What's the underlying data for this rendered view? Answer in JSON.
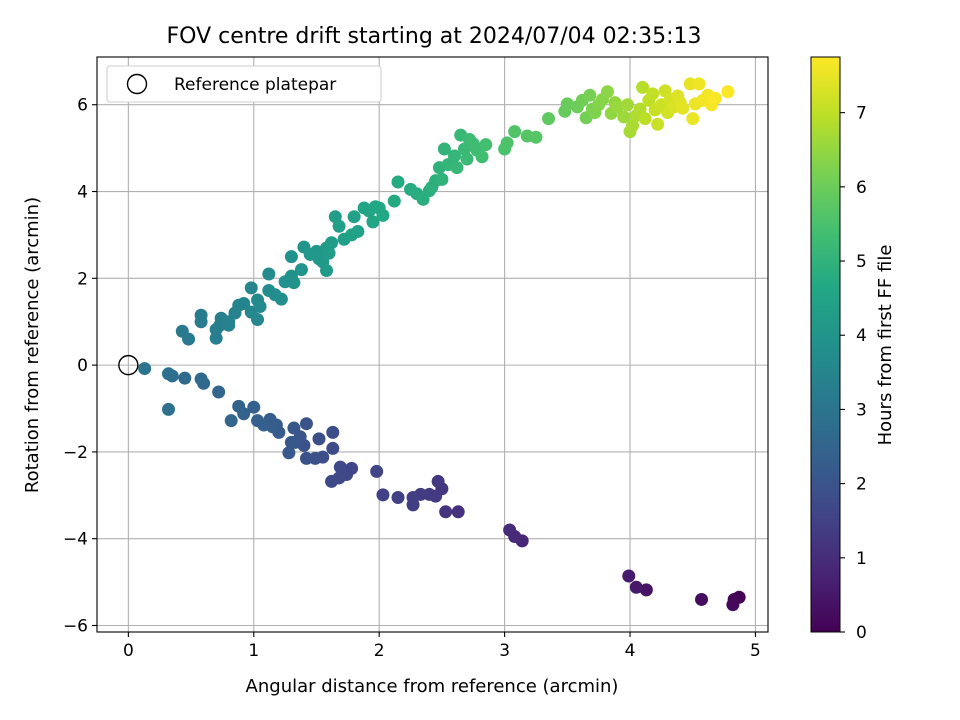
{
  "chart_data": {
    "type": "scatter",
    "title": "FOV centre drift starting at 2024/07/04 02:35:13",
    "xlabel": "Angular distance from reference (arcmin)",
    "ylabel": "Rotation from reference (arcmin)",
    "xlim": [
      -0.25,
      5.1
    ],
    "ylim": [
      -6.15,
      7.1
    ],
    "xticks": [
      0,
      1,
      2,
      3,
      4,
      5
    ],
    "yticks": [
      -6,
      -4,
      -2,
      0,
      2,
      4,
      6
    ],
    "xtick_labels": [
      "0",
      "1",
      "2",
      "3",
      "4",
      "5"
    ],
    "ytick_labels": [
      "−6",
      "−4",
      "−2",
      "0",
      "2",
      "4",
      "6"
    ],
    "grid": true,
    "legend": {
      "placement": "top-left",
      "entries": [
        {
          "label": "Reference platepar",
          "marker": "open-circle"
        }
      ]
    },
    "reference_point": {
      "x": 0,
      "y": 0
    },
    "colorbar": {
      "label": "Hours from first FF file",
      "colormap": "viridis",
      "range": [
        0,
        7.75
      ],
      "ticks": [
        0,
        1,
        2,
        3,
        4,
        5,
        6,
        7
      ],
      "tick_labels": [
        "0",
        "1",
        "2",
        "3",
        "4",
        "5",
        "6",
        "7"
      ]
    },
    "points": [
      {
        "x": 4.87,
        "y": -5.35,
        "c": 0.05
      },
      {
        "x": 4.83,
        "y": -5.4,
        "c": 0.1
      },
      {
        "x": 4.82,
        "y": -5.52,
        "c": 0.15
      },
      {
        "x": 4.57,
        "y": -5.4,
        "c": 0.25
      },
      {
        "x": 4.13,
        "y": -5.18,
        "c": 0.4
      },
      {
        "x": 4.05,
        "y": -5.12,
        "c": 0.5
      },
      {
        "x": 3.99,
        "y": -4.86,
        "c": 0.6
      },
      {
        "x": 3.14,
        "y": -4.05,
        "c": 0.85
      },
      {
        "x": 3.08,
        "y": -3.95,
        "c": 0.9
      },
      {
        "x": 3.04,
        "y": -3.8,
        "c": 0.95
      },
      {
        "x": 2.63,
        "y": -3.38,
        "c": 1.1
      },
      {
        "x": 2.53,
        "y": -3.38,
        "c": 1.15
      },
      {
        "x": 2.5,
        "y": -2.85,
        "c": 1.2
      },
      {
        "x": 2.47,
        "y": -2.68,
        "c": 1.25
      },
      {
        "x": 2.45,
        "y": -3.02,
        "c": 1.3
      },
      {
        "x": 2.4,
        "y": -2.98,
        "c": 1.32
      },
      {
        "x": 2.33,
        "y": -2.98,
        "c": 1.35
      },
      {
        "x": 2.27,
        "y": -3.05,
        "c": 1.38
      },
      {
        "x": 2.27,
        "y": -3.22,
        "c": 1.4
      },
      {
        "x": 2.15,
        "y": -3.05,
        "c": 1.45
      },
      {
        "x": 2.03,
        "y": -2.99,
        "c": 1.5
      },
      {
        "x": 1.98,
        "y": -2.45,
        "c": 1.55
      },
      {
        "x": 1.78,
        "y": -2.38,
        "c": 1.6
      },
      {
        "x": 1.74,
        "y": -2.52,
        "c": 1.63
      },
      {
        "x": 1.69,
        "y": -2.35,
        "c": 1.66
      },
      {
        "x": 1.68,
        "y": -2.6,
        "c": 1.7
      },
      {
        "x": 1.62,
        "y": -2.68,
        "c": 1.73
      },
      {
        "x": 1.63,
        "y": -1.92,
        "c": 1.76
      },
      {
        "x": 1.63,
        "y": -1.55,
        "c": 1.8
      },
      {
        "x": 1.55,
        "y": -2.12,
        "c": 1.83
      },
      {
        "x": 1.52,
        "y": -1.7,
        "c": 1.86
      },
      {
        "x": 1.49,
        "y": -2.15,
        "c": 1.9
      },
      {
        "x": 1.42,
        "y": -2.15,
        "c": 1.93
      },
      {
        "x": 1.4,
        "y": -1.85,
        "c": 1.96
      },
      {
        "x": 1.42,
        "y": -1.35,
        "c": 2.0
      },
      {
        "x": 1.37,
        "y": -1.65,
        "c": 2.03
      },
      {
        "x": 1.33,
        "y": -1.78,
        "c": 2.06
      },
      {
        "x": 1.32,
        "y": -1.45,
        "c": 2.1
      },
      {
        "x": 1.3,
        "y": -1.78,
        "c": 2.13
      },
      {
        "x": 1.28,
        "y": -2.02,
        "c": 2.16
      },
      {
        "x": 1.2,
        "y": -1.55,
        "c": 2.2
      },
      {
        "x": 1.18,
        "y": -1.38,
        "c": 2.23
      },
      {
        "x": 1.13,
        "y": -1.25,
        "c": 2.26
      },
      {
        "x": 1.15,
        "y": -1.42,
        "c": 2.3
      },
      {
        "x": 1.08,
        "y": -1.38,
        "c": 2.33
      },
      {
        "x": 1.03,
        "y": -1.28,
        "c": 2.36
      },
      {
        "x": 1.0,
        "y": -0.97,
        "c": 2.4
      },
      {
        "x": 0.92,
        "y": -1.12,
        "c": 2.43
      },
      {
        "x": 0.88,
        "y": -0.95,
        "c": 2.46
      },
      {
        "x": 0.82,
        "y": -1.28,
        "c": 2.5
      },
      {
        "x": 0.72,
        "y": -0.62,
        "c": 2.55
      },
      {
        "x": 0.6,
        "y": -0.42,
        "c": 2.6
      },
      {
        "x": 0.58,
        "y": -0.32,
        "c": 2.65
      },
      {
        "x": 0.45,
        "y": -0.3,
        "c": 2.7
      },
      {
        "x": 0.35,
        "y": -0.25,
        "c": 2.75
      },
      {
        "x": 0.32,
        "y": -0.2,
        "c": 2.8
      },
      {
        "x": 0.32,
        "y": -1.02,
        "c": 2.85
      },
      {
        "x": 0.13,
        "y": -0.08,
        "c": 2.95
      },
      {
        "x": 0.43,
        "y": 0.78,
        "c": 3.1
      },
      {
        "x": 0.48,
        "y": 0.6,
        "c": 3.15
      },
      {
        "x": 0.58,
        "y": 1.0,
        "c": 3.2
      },
      {
        "x": 0.58,
        "y": 1.15,
        "c": 3.22
      },
      {
        "x": 0.7,
        "y": 0.62,
        "c": 3.25
      },
      {
        "x": 0.7,
        "y": 0.82,
        "c": 3.28
      },
      {
        "x": 0.73,
        "y": 0.92,
        "c": 3.3
      },
      {
        "x": 0.74,
        "y": 1.08,
        "c": 3.33
      },
      {
        "x": 0.8,
        "y": 0.92,
        "c": 3.36
      },
      {
        "x": 0.8,
        "y": 1.0,
        "c": 3.4
      },
      {
        "x": 0.85,
        "y": 1.2,
        "c": 3.43
      },
      {
        "x": 0.88,
        "y": 1.38,
        "c": 3.46
      },
      {
        "x": 0.92,
        "y": 1.42,
        "c": 3.5
      },
      {
        "x": 0.98,
        "y": 1.22,
        "c": 3.53
      },
      {
        "x": 0.98,
        "y": 1.78,
        "c": 3.56
      },
      {
        "x": 1.03,
        "y": 1.05,
        "c": 3.6
      },
      {
        "x": 1.03,
        "y": 1.5,
        "c": 3.63
      },
      {
        "x": 1.05,
        "y": 1.35,
        "c": 3.66
      },
      {
        "x": 1.12,
        "y": 2.1,
        "c": 3.7
      },
      {
        "x": 1.12,
        "y": 1.72,
        "c": 3.73
      },
      {
        "x": 1.17,
        "y": 1.62,
        "c": 3.76
      },
      {
        "x": 1.22,
        "y": 1.52,
        "c": 3.8
      },
      {
        "x": 1.25,
        "y": 1.92,
        "c": 3.83
      },
      {
        "x": 1.3,
        "y": 2.05,
        "c": 3.86
      },
      {
        "x": 1.3,
        "y": 2.5,
        "c": 3.9
      },
      {
        "x": 1.32,
        "y": 1.9,
        "c": 3.93
      },
      {
        "x": 1.38,
        "y": 2.2,
        "c": 3.96
      },
      {
        "x": 1.4,
        "y": 2.72,
        "c": 4.0
      },
      {
        "x": 1.45,
        "y": 2.55,
        "c": 4.03
      },
      {
        "x": 1.5,
        "y": 2.62,
        "c": 4.06
      },
      {
        "x": 1.52,
        "y": 2.45,
        "c": 4.1
      },
      {
        "x": 1.55,
        "y": 2.38,
        "c": 4.13
      },
      {
        "x": 1.58,
        "y": 2.7,
        "c": 4.16
      },
      {
        "x": 1.58,
        "y": 2.18,
        "c": 4.2
      },
      {
        "x": 1.6,
        "y": 2.58,
        "c": 4.23
      },
      {
        "x": 1.62,
        "y": 2.82,
        "c": 4.26
      },
      {
        "x": 1.65,
        "y": 3.42,
        "c": 4.3
      },
      {
        "x": 1.68,
        "y": 3.2,
        "c": 4.33
      },
      {
        "x": 1.72,
        "y": 2.9,
        "c": 4.36
      },
      {
        "x": 1.78,
        "y": 3.0,
        "c": 4.4
      },
      {
        "x": 1.8,
        "y": 3.42,
        "c": 4.43
      },
      {
        "x": 1.83,
        "y": 3.08,
        "c": 4.46
      },
      {
        "x": 1.88,
        "y": 3.62,
        "c": 4.5
      },
      {
        "x": 1.92,
        "y": 3.55,
        "c": 4.53
      },
      {
        "x": 1.95,
        "y": 3.3,
        "c": 4.56
      },
      {
        "x": 1.97,
        "y": 3.65,
        "c": 4.6
      },
      {
        "x": 2.0,
        "y": 3.62,
        "c": 4.63
      },
      {
        "x": 2.03,
        "y": 3.45,
        "c": 4.66
      },
      {
        "x": 2.12,
        "y": 3.78,
        "c": 4.7
      },
      {
        "x": 2.15,
        "y": 4.22,
        "c": 4.73
      },
      {
        "x": 2.25,
        "y": 4.05,
        "c": 4.76
      },
      {
        "x": 2.3,
        "y": 3.95,
        "c": 4.8
      },
      {
        "x": 2.35,
        "y": 3.82,
        "c": 4.83
      },
      {
        "x": 2.4,
        "y": 4.02,
        "c": 4.86
      },
      {
        "x": 2.42,
        "y": 4.1,
        "c": 4.9
      },
      {
        "x": 2.45,
        "y": 4.25,
        "c": 4.93
      },
      {
        "x": 2.48,
        "y": 4.55,
        "c": 4.96
      },
      {
        "x": 2.5,
        "y": 4.28,
        "c": 5.0
      },
      {
        "x": 2.52,
        "y": 4.98,
        "c": 5.03
      },
      {
        "x": 2.55,
        "y": 4.62,
        "c": 5.06
      },
      {
        "x": 2.6,
        "y": 4.82,
        "c": 5.1
      },
      {
        "x": 2.62,
        "y": 4.55,
        "c": 5.13
      },
      {
        "x": 2.65,
        "y": 5.3,
        "c": 5.16
      },
      {
        "x": 2.68,
        "y": 4.98,
        "c": 5.2
      },
      {
        "x": 2.7,
        "y": 4.75,
        "c": 5.23
      },
      {
        "x": 2.72,
        "y": 5.2,
        "c": 5.26
      },
      {
        "x": 2.75,
        "y": 5.1,
        "c": 5.3
      },
      {
        "x": 2.78,
        "y": 4.95,
        "c": 5.33
      },
      {
        "x": 2.82,
        "y": 4.8,
        "c": 5.36
      },
      {
        "x": 2.85,
        "y": 5.08,
        "c": 5.4
      },
      {
        "x": 3.0,
        "y": 4.98,
        "c": 5.5
      },
      {
        "x": 3.02,
        "y": 5.12,
        "c": 5.55
      },
      {
        "x": 3.08,
        "y": 5.38,
        "c": 5.6
      },
      {
        "x": 3.18,
        "y": 5.28,
        "c": 5.65
      },
      {
        "x": 3.25,
        "y": 5.25,
        "c": 5.7
      },
      {
        "x": 3.35,
        "y": 5.68,
        "c": 5.8
      },
      {
        "x": 3.48,
        "y": 5.85,
        "c": 5.9
      },
      {
        "x": 3.5,
        "y": 6.02,
        "c": 5.95
      },
      {
        "x": 3.58,
        "y": 5.95,
        "c": 6.0
      },
      {
        "x": 3.62,
        "y": 6.1,
        "c": 6.05
      },
      {
        "x": 3.65,
        "y": 5.7,
        "c": 6.1
      },
      {
        "x": 3.68,
        "y": 6.22,
        "c": 6.15
      },
      {
        "x": 3.7,
        "y": 5.9,
        "c": 6.2
      },
      {
        "x": 3.72,
        "y": 5.82,
        "c": 6.25
      },
      {
        "x": 3.75,
        "y": 6.0,
        "c": 6.3
      },
      {
        "x": 3.78,
        "y": 6.12,
        "c": 6.35
      },
      {
        "x": 3.82,
        "y": 6.3,
        "c": 6.4
      },
      {
        "x": 3.85,
        "y": 5.8,
        "c": 6.45
      },
      {
        "x": 3.88,
        "y": 6.05,
        "c": 6.5
      },
      {
        "x": 3.9,
        "y": 5.95,
        "c": 6.55
      },
      {
        "x": 3.95,
        "y": 5.72,
        "c": 6.6
      },
      {
        "x": 3.98,
        "y": 6.0,
        "c": 6.65
      },
      {
        "x": 4.0,
        "y": 5.38,
        "c": 6.7
      },
      {
        "x": 4.02,
        "y": 5.52,
        "c": 6.75
      },
      {
        "x": 4.05,
        "y": 5.75,
        "c": 6.8
      },
      {
        "x": 4.08,
        "y": 5.9,
        "c": 6.85
      },
      {
        "x": 4.1,
        "y": 6.4,
        "c": 6.9
      },
      {
        "x": 4.12,
        "y": 5.68,
        "c": 6.95
      },
      {
        "x": 4.15,
        "y": 6.1,
        "c": 7.0
      },
      {
        "x": 4.18,
        "y": 6.25,
        "c": 7.05
      },
      {
        "x": 4.2,
        "y": 5.88,
        "c": 7.1
      },
      {
        "x": 4.22,
        "y": 5.55,
        "c": 7.12
      },
      {
        "x": 4.25,
        "y": 6.0,
        "c": 7.15
      },
      {
        "x": 4.28,
        "y": 6.32,
        "c": 7.18
      },
      {
        "x": 4.3,
        "y": 5.82,
        "c": 7.2
      },
      {
        "x": 4.32,
        "y": 6.12,
        "c": 7.25
      },
      {
        "x": 4.35,
        "y": 5.95,
        "c": 7.3
      },
      {
        "x": 4.38,
        "y": 6.2,
        "c": 7.35
      },
      {
        "x": 4.4,
        "y": 6.05,
        "c": 7.4
      },
      {
        "x": 4.42,
        "y": 5.92,
        "c": 7.45
      },
      {
        "x": 4.48,
        "y": 6.48,
        "c": 7.5
      },
      {
        "x": 4.5,
        "y": 5.68,
        "c": 7.52
      },
      {
        "x": 4.52,
        "y": 6.02,
        "c": 7.55
      },
      {
        "x": 4.55,
        "y": 6.48,
        "c": 7.58
      },
      {
        "x": 4.58,
        "y": 6.1,
        "c": 7.6
      },
      {
        "x": 4.62,
        "y": 6.22,
        "c": 7.63
      },
      {
        "x": 4.65,
        "y": 6.0,
        "c": 7.66
      },
      {
        "x": 4.68,
        "y": 6.15,
        "c": 7.7
      },
      {
        "x": 4.78,
        "y": 6.3,
        "c": 7.74
      }
    ]
  }
}
